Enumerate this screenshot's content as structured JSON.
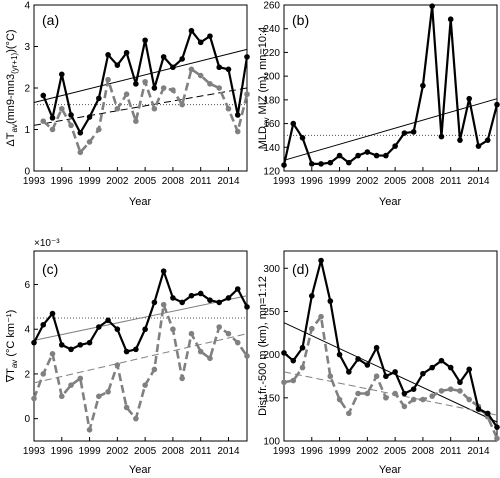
{
  "chart_data": [
    {
      "type": "line",
      "panel_label": "(a)",
      "xlabel": "Year",
      "ylabel": "ΔT_av (mn9-mn3_(yr+1)) (°C)",
      "x_ticks": [
        "1993",
        "1996",
        "1999",
        "2002",
        "2005",
        "2008",
        "2011",
        "2014"
      ],
      "y_ticks": [
        "0",
        "1",
        "2",
        "3",
        "4"
      ],
      "xlim": [
        1993,
        2016
      ],
      "ylim": [
        0,
        4
      ],
      "grid": false,
      "x": [
        1994,
        1995,
        1996,
        1997,
        1998,
        1999,
        2000,
        2001,
        2002,
        2003,
        2004,
        2005,
        2006,
        2007,
        2008,
        2009,
        2010,
        2011,
        2012,
        2013,
        2014,
        2015,
        2016
      ],
      "series": [
        {
          "values": [
            1.82,
            1.28,
            2.33,
            1.35,
            0.92,
            1.3,
            1.75,
            2.8,
            2.55,
            2.85,
            2.1,
            3.15,
            2.0,
            2.75,
            2.5,
            2.7,
            3.38,
            3.1,
            3.25,
            2.5,
            2.45,
            1.35,
            2.75
          ],
          "color": "#000000",
          "style": "solid"
        },
        {
          "values": [
            1.2,
            1.0,
            1.5,
            1.1,
            0.45,
            0.7,
            1.0,
            2.2,
            1.5,
            1.85,
            1.2,
            2.15,
            1.5,
            2.0,
            1.95,
            1.6,
            2.45,
            2.3,
            2.1,
            2.0,
            1.5,
            0.95,
            1.85
          ],
          "color": "#808080",
          "style": "dashed"
        }
      ],
      "trends": [
        {
          "from": [
            1993,
            1.65
          ],
          "to": [
            2016,
            2.93
          ],
          "color": "#000000",
          "style": "solid"
        },
        {
          "from": [
            1993,
            1.1
          ],
          "to": [
            2016,
            2.0
          ],
          "color": "#000000",
          "style": "dashed"
        }
      ],
      "reference_line": {
        "y": 1.6,
        "style": "dotted"
      }
    },
    {
      "type": "line",
      "panel_label": "(b)",
      "xlabel": "Year",
      "ylabel": "MLD_av MIZ (m), mn=10:4",
      "x_ticks": [
        "1993",
        "1996",
        "1999",
        "2002",
        "2005",
        "2008",
        "2011",
        "2014"
      ],
      "y_ticks": [
        "120",
        "140",
        "160",
        "180",
        "200",
        "220",
        "240",
        "260"
      ],
      "xlim": [
        1993,
        2016
      ],
      "ylim": [
        120,
        260
      ],
      "grid": false,
      "x": [
        1993,
        1994,
        1995,
        1996,
        1997,
        1998,
        1999,
        2000,
        2001,
        2002,
        2003,
        2004,
        2005,
        2006,
        2007,
        2008,
        2009,
        2010,
        2011,
        2012,
        2013,
        2014,
        2015,
        2016
      ],
      "series": [
        {
          "values": [
            125,
            160,
            148,
            126,
            126,
            127,
            133,
            127,
            133,
            136,
            133,
            133,
            141,
            152,
            153,
            192,
            259,
            149,
            248,
            146,
            181,
            141,
            146,
            176
          ],
          "color": "#000000",
          "style": "solid"
        }
      ],
      "trends": [
        {
          "from": [
            1993,
            129
          ],
          "to": [
            2016,
            181
          ],
          "color": "#000000",
          "style": "solid"
        }
      ],
      "reference_line": {
        "y": 150,
        "style": "dotted"
      }
    },
    {
      "type": "line",
      "panel_label": "(c)",
      "xlabel": "Year",
      "ylabel": "∇T_av (°C km⁻¹)",
      "scale_note": "×10⁻³",
      "x_ticks": [
        "1993",
        "1996",
        "1999",
        "2002",
        "2005",
        "2008",
        "2011",
        "2014"
      ],
      "y_ticks": [
        "0",
        "2",
        "4",
        "6"
      ],
      "xlim": [
        1993,
        2016
      ],
      "ylim": [
        -1,
        7.5
      ],
      "grid": false,
      "x": [
        1993,
        1994,
        1995,
        1996,
        1997,
        1998,
        1999,
        2000,
        2001,
        2002,
        2003,
        2004,
        2005,
        2006,
        2007,
        2008,
        2009,
        2010,
        2011,
        2012,
        2013,
        2014,
        2015,
        2016
      ],
      "series": [
        {
          "values": [
            3.4,
            4.2,
            4.7,
            3.3,
            3.1,
            3.3,
            3.4,
            4.1,
            4.4,
            4.0,
            3.0,
            3.1,
            4.0,
            5.2,
            6.6,
            5.4,
            5.2,
            5.5,
            5.6,
            5.3,
            5.2,
            5.4,
            5.8,
            5.0
          ],
          "color": "#000000",
          "style": "solid"
        },
        {
          "values": [
            0.9,
            2.0,
            2.9,
            1.0,
            1.5,
            1.8,
            -0.5,
            1.0,
            1.2,
            2.4,
            0.5,
            0.0,
            1.5,
            2.2,
            5.1,
            4.0,
            1.8,
            3.8,
            3.0,
            2.7,
            4.1,
            3.8,
            3.4,
            2.8
          ],
          "color": "#808080",
          "style": "dashed"
        }
      ],
      "trends": [
        {
          "from": [
            1993,
            3.5
          ],
          "to": [
            2016,
            5.5
          ],
          "color": "#808080",
          "style": "solid"
        },
        {
          "from": [
            1993,
            1.6
          ],
          "to": [
            2016,
            3.8
          ],
          "color": "#808080",
          "style": "dashed"
        }
      ],
      "reference_line": {
        "y": 4.5,
        "style": "dotted"
      }
    },
    {
      "type": "line",
      "panel_label": "(d)",
      "xlabel": "Year",
      "ylabel": "Dist.fr.-500 m (km), mn=1:12",
      "x_ticks": [
        "1993",
        "1996",
        "1999",
        "2002",
        "2005",
        "2008",
        "2011",
        "2014"
      ],
      "y_ticks": [
        "100",
        "150",
        "200",
        "250",
        "300"
      ],
      "xlim": [
        1993,
        2016
      ],
      "ylim": [
        100,
        320
      ],
      "grid": false,
      "x": [
        1993,
        1994,
        1995,
        1996,
        1997,
        1998,
        1999,
        2000,
        2001,
        2002,
        2003,
        2004,
        2005,
        2006,
        2007,
        2008,
        2009,
        2010,
        2011,
        2012,
        2013,
        2014,
        2015,
        2016
      ],
      "series": [
        {
          "values": [
            202,
            193,
            208,
            268,
            309,
            262,
            200,
            180,
            195,
            188,
            208,
            175,
            180,
            155,
            160,
            178,
            185,
            193,
            185,
            168,
            183,
            137,
            132,
            116
          ],
          "color": "#000000",
          "style": "solid"
        },
        {
          "values": [
            168,
            170,
            185,
            230,
            244,
            175,
            148,
            132,
            155,
            155,
            175,
            150,
            155,
            140,
            148,
            148,
            152,
            158,
            160,
            158,
            148,
            140,
            128,
            103
          ],
          "color": "#808080",
          "style": "dashed"
        }
      ],
      "trends": [
        {
          "from": [
            1993,
            237
          ],
          "to": [
            2016,
            122
          ],
          "color": "#000000",
          "style": "solid"
        },
        {
          "from": [
            1993,
            180
          ],
          "to": [
            2016,
            130
          ],
          "color": "#808080",
          "style": "dashed"
        }
      ],
      "reference_line": null
    }
  ]
}
